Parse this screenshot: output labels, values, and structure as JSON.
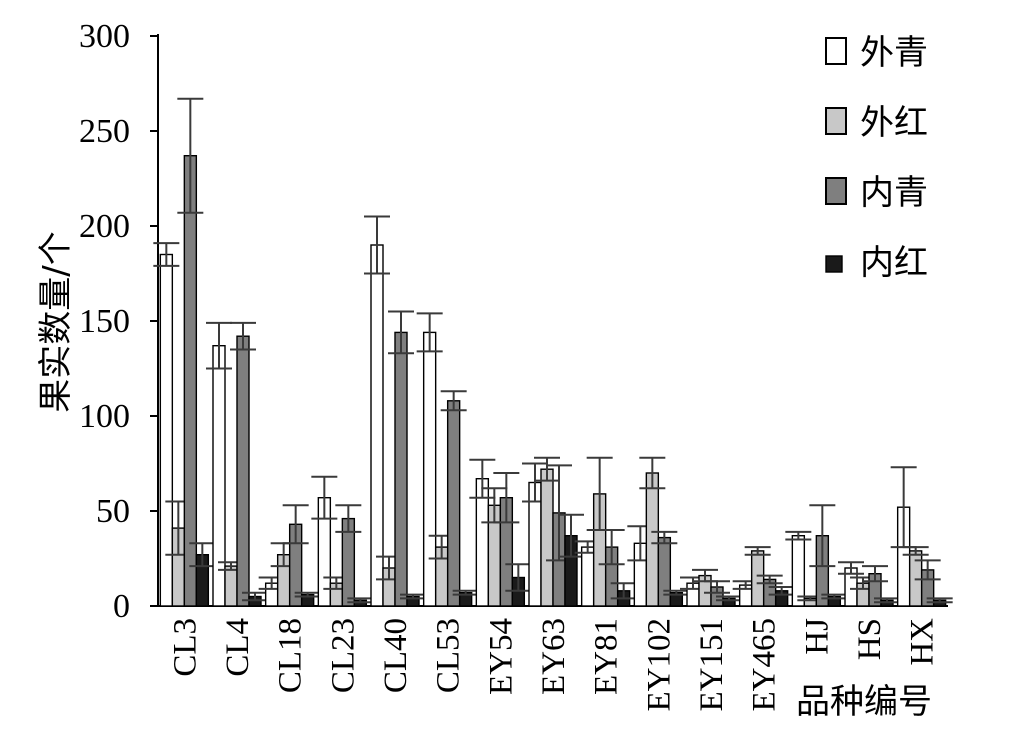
{
  "chart_data": {
    "type": "bar",
    "xlabel": "品种编号",
    "ylabel": "果实数量/个",
    "ylim": [
      0,
      300
    ],
    "yticks": [
      0,
      50,
      100,
      150,
      200,
      250,
      300
    ],
    "categories": [
      "CL3",
      "CL4",
      "CL18",
      "CL23",
      "CL40",
      "CL53",
      "EY54",
      "EY63",
      "EY81",
      "EY102",
      "EY151",
      "EY465",
      "HJ",
      "HS",
      "HX"
    ],
    "legend_position": "top-right",
    "series": [
      {
        "name": "外青",
        "color": "#ffffff",
        "values": [
          185,
          137,
          12,
          57,
          190,
          144,
          67,
          65,
          31,
          33,
          12,
          11,
          37,
          20,
          52
        ],
        "errors": [
          6,
          12,
          3,
          11,
          15,
          10,
          10,
          10,
          3,
          9,
          3,
          2,
          2,
          3,
          21
        ]
      },
      {
        "name": "外红",
        "color": "#c8c8c8",
        "values": [
          41,
          21,
          27,
          12,
          20,
          31,
          53,
          72,
          59,
          70,
          16,
          29,
          4,
          12,
          29
        ],
        "errors": [
          14,
          2,
          6,
          3,
          6,
          6,
          9,
          6,
          19,
          8,
          3,
          2,
          1,
          3,
          2
        ]
      },
      {
        "name": "内青",
        "color": "#7f7f7f",
        "values": [
          237,
          142,
          43,
          46,
          144,
          108,
          57,
          49,
          31,
          36,
          10,
          14,
          37,
          17,
          19
        ],
        "errors": [
          30,
          7,
          10,
          7,
          11,
          5,
          13,
          25,
          9,
          3,
          3,
          2,
          16,
          4,
          5
        ]
      },
      {
        "name": "内红",
        "color": "#1a1a1a",
        "values": [
          27,
          5,
          6,
          3,
          5,
          7,
          15,
          37,
          8,
          7,
          4,
          8,
          5,
          3,
          3
        ],
        "errors": [
          6,
          2,
          1,
          1,
          1,
          1,
          7,
          11,
          4,
          1,
          1,
          2,
          1,
          1,
          1
        ]
      }
    ]
  }
}
